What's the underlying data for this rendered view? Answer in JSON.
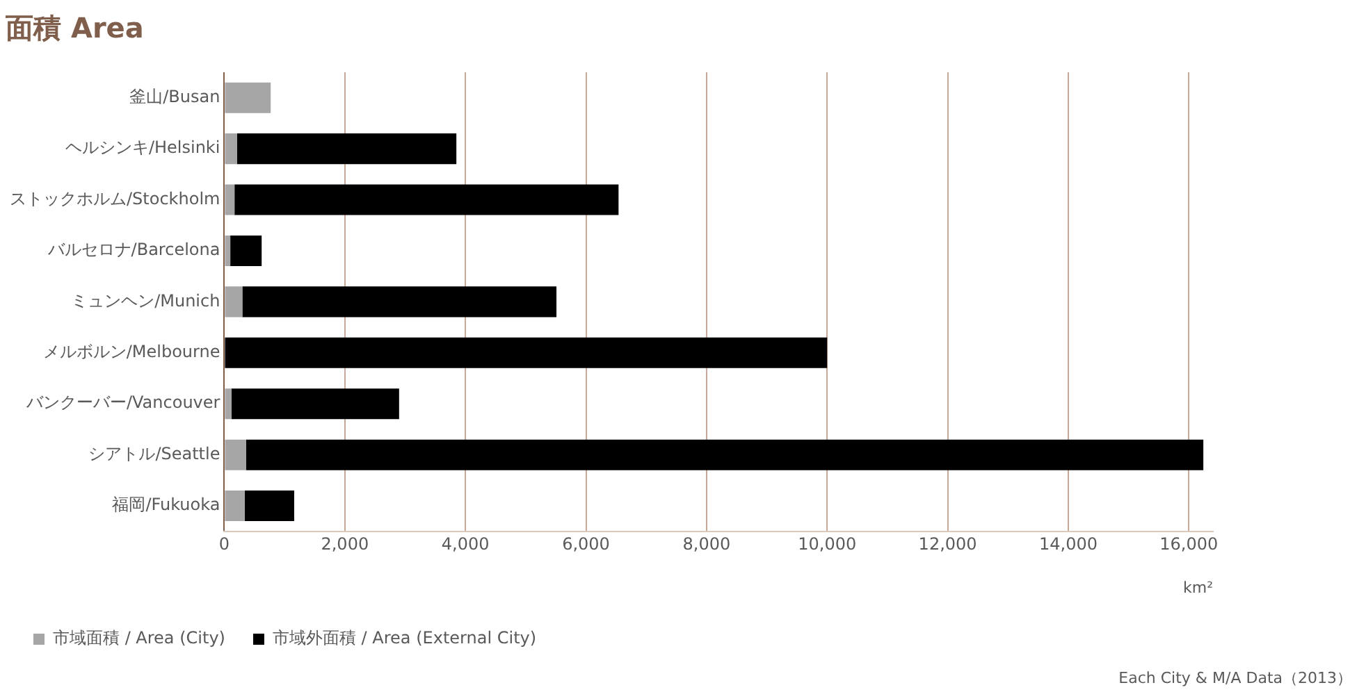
{
  "chart_data": {
    "type": "bar",
    "orientation": "horizontal",
    "stacked": true,
    "title": "面積 Area",
    "xlabel": "km²",
    "categories": [
      "釜山/Busan",
      "ヘルシンキ/Helsinki",
      "ストックホルム/Stockholm",
      "バルセロナ/Barcelona",
      "ミュンヘン/Munich",
      "メルボルン/Melbourne",
      "バンクーバー/Vancouver",
      "シアトル/Seattle",
      "福岡/Fukuoka"
    ],
    "series": [
      {
        "name": "市域面積 / Area (City)",
        "color": "#a6a6a6",
        "values": [
          770,
          210,
          170,
          100,
          300,
          null,
          120,
          360,
          340
        ]
      },
      {
        "name": "市域外面積 / Area (External City)",
        "color": "#000000",
        "values": [
          null,
          3640,
          6370,
          520,
          5210,
          10000,
          2780,
          15880,
          820
        ]
      }
    ],
    "xlim": [
      0,
      16400
    ],
    "xticks": [
      {
        "value": 0,
        "label": "0"
      },
      {
        "value": 2000,
        "label": "2,000"
      },
      {
        "value": 4000,
        "label": "4,000"
      },
      {
        "value": 6000,
        "label": "6,000"
      },
      {
        "value": 8000,
        "label": "8,000"
      },
      {
        "value": 10000,
        "label": "10,000"
      },
      {
        "value": 12000,
        "label": "12,000"
      },
      {
        "value": 14000,
        "label": "14,000"
      },
      {
        "value": 16000,
        "label": "16,000"
      }
    ],
    "grid": "x",
    "legend": "bottom",
    "annotations": [
      "Each City & M/A Data（2013）"
    ]
  }
}
